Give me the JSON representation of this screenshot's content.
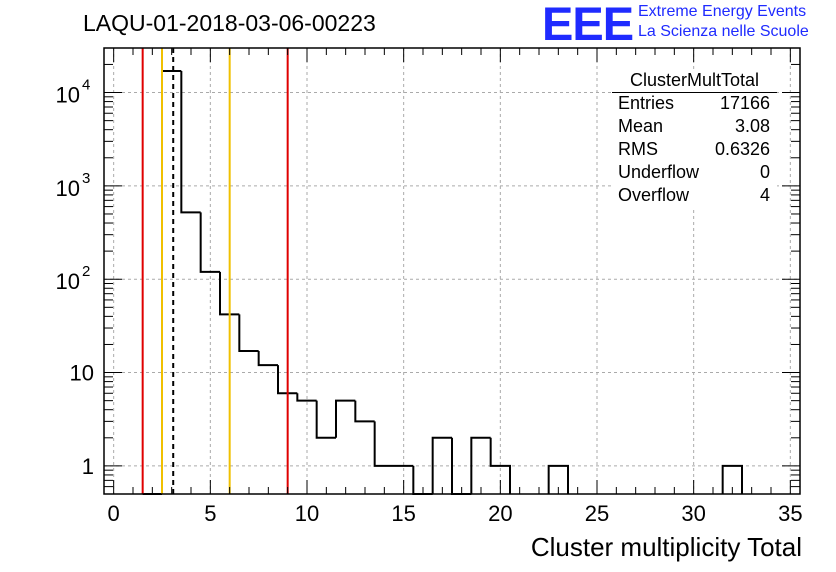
{
  "header": {
    "title": "LAQU-01-2018-03-06-00223",
    "logo_text": "EEE",
    "logo_line1": "Extreme Energy Events",
    "logo_line2": "La Scienza nelle Scuole"
  },
  "stats_box": {
    "name": "ClusterMultTotal",
    "rows": [
      {
        "key": "Entries",
        "value": "17166"
      },
      {
        "key": "Mean",
        "value": "3.08"
      },
      {
        "key": "RMS",
        "value": "0.6326"
      },
      {
        "key": "Underflow",
        "value": "0"
      },
      {
        "key": "Overflow",
        "value": "4"
      }
    ]
  },
  "chart_data": {
    "type": "bar",
    "title": "LAQU-01-2018-03-06-00223",
    "xlabel": "Cluster multiplicity Total",
    "ylabel": "",
    "xlim": [
      -0.5,
      35.5
    ],
    "ylim": [
      0.5,
      30000
    ],
    "y_scale": "log",
    "grid": true,
    "bin_width": 1,
    "bins": [
      {
        "x": 2,
        "count": 0
      },
      {
        "x": 3,
        "count": 17000
      },
      {
        "x": 4,
        "count": 520
      },
      {
        "x": 5,
        "count": 120
      },
      {
        "x": 6,
        "count": 42
      },
      {
        "x": 7,
        "count": 17
      },
      {
        "x": 8,
        "count": 12
      },
      {
        "x": 9,
        "count": 6
      },
      {
        "x": 10,
        "count": 5
      },
      {
        "x": 11,
        "count": 2
      },
      {
        "x": 12,
        "count": 5
      },
      {
        "x": 13,
        "count": 3
      },
      {
        "x": 14,
        "count": 1
      },
      {
        "x": 15,
        "count": 1
      },
      {
        "x": 16,
        "count": 0
      },
      {
        "x": 17,
        "count": 2
      },
      {
        "x": 18,
        "count": 0
      },
      {
        "x": 19,
        "count": 2
      },
      {
        "x": 20,
        "count": 1
      },
      {
        "x": 23,
        "count": 1
      },
      {
        "x": 32,
        "count": 1
      }
    ],
    "x_ticks": [
      0,
      5,
      10,
      15,
      20,
      25,
      30,
      35
    ],
    "y_ticks": [
      {
        "value": 1,
        "label": "1"
      },
      {
        "value": 10,
        "label": "10"
      },
      {
        "value": 100,
        "base": "10",
        "exp": "2"
      },
      {
        "value": 1000,
        "base": "10",
        "exp": "3"
      },
      {
        "value": 10000,
        "base": "10",
        "exp": "4"
      }
    ],
    "vertical_lines": [
      {
        "x": 1.5,
        "color": "#e00000",
        "style": "solid"
      },
      {
        "x": 2.5,
        "color": "#f0c000",
        "style": "solid"
      },
      {
        "x": 3.08,
        "color": "#000000",
        "style": "dashed"
      },
      {
        "x": 6.0,
        "color": "#f0c000",
        "style": "solid"
      },
      {
        "x": 9.0,
        "color": "#e00000",
        "style": "solid"
      }
    ]
  }
}
